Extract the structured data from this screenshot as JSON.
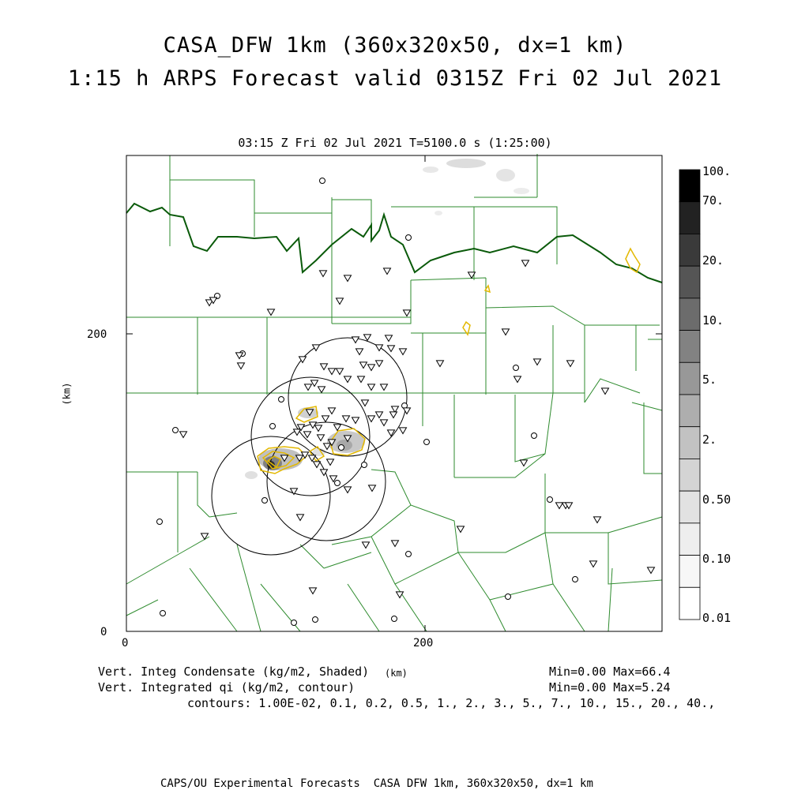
{
  "header": {
    "title_line1": "CASA_DFW 1km (360x320x50, dx=1 km)",
    "title_line2": "1:15 h ARPS Forecast valid 0315Z Fri 02 Jul 2021",
    "subtitle": "03:15 Z Fri 02 Jul 2021    T=5100.0 s (1:25:00)"
  },
  "axes": {
    "y_unit": "(km)",
    "x_unit": "(km)",
    "x_ticks": [
      "0",
      "200"
    ],
    "y_ticks": [
      "0",
      "200"
    ]
  },
  "colorbar": {
    "labels": [
      "100.",
      "70.",
      "20.",
      "10.",
      "5.",
      "2.",
      "0.50",
      "0.10",
      "0.01"
    ],
    "colors": [
      "#000000",
      "#222222",
      "#3a3a3a",
      "#555555",
      "#6c6c6c",
      "#828282",
      "#989898",
      "#aeaeae",
      "#c2c2c2",
      "#d4d4d4",
      "#e2e2e2",
      "#eeeeee",
      "#f7f7f7",
      "#ffffff"
    ]
  },
  "footer": {
    "line1_left": "Vert. Integ Condensate (kg/m2, Shaded)",
    "line1_right": "Min=0.00 Max=66.4",
    "line2_left": "Vert. Integrated qi (kg/m2, contour)",
    "line2_right": "Min=0.00 Max=5.24",
    "line3": "contours: 1.00E-02, 0.1, 0.2, 0.5, 1., 2., 3., 5., 7., 10., 15., 20., 40.,",
    "credit": "CAPS/OU Experimental Forecasts  CASA DFW 1km, 360x320x50, dx=1 km"
  },
  "map_style": {
    "county_line_color": "#2e8b2e",
    "state_line_color": "#0a5a0a",
    "contour_color": "#e3b800",
    "radar_ring_color": "#000000"
  }
}
